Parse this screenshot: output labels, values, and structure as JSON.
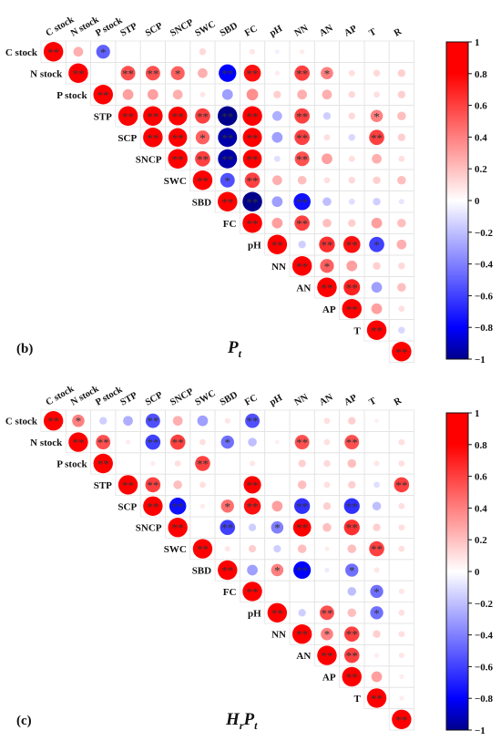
{
  "chart_data": [
    {
      "type": "heatmap",
      "panel_label": "(b)",
      "panel_title": "P",
      "panel_title_sub": "t",
      "variables": [
        "C stock",
        "N stock",
        "P stock",
        "STP",
        "SCP",
        "SNCP",
        "SWC",
        "SBD",
        "FC",
        "pH",
        "NN",
        "AN",
        "AP",
        "T",
        "R"
      ],
      "colorbar_ticks": [
        "1",
        "0.8",
        "0.6",
        "0.4",
        "0.2",
        "0",
        "−0.2",
        "−0.4",
        "−0.6",
        "−0.8",
        "−1"
      ],
      "colorbar_range": [
        -1,
        1
      ],
      "cells": [
        [
          0,
          0,
          1,
          "**"
        ],
        [
          0,
          1,
          0.25,
          ""
        ],
        [
          0,
          2,
          -0.5,
          "*"
        ],
        [
          0,
          6,
          0.12,
          ""
        ],
        [
          0,
          8,
          0.08,
          ""
        ],
        [
          0,
          9,
          -0.05,
          ""
        ],
        [
          0,
          10,
          0.06,
          ""
        ],
        [
          1,
          1,
          1,
          "**"
        ],
        [
          1,
          3,
          0.55,
          "**"
        ],
        [
          1,
          4,
          0.55,
          "**"
        ],
        [
          1,
          5,
          0.5,
          "*"
        ],
        [
          1,
          6,
          0.25,
          ""
        ],
        [
          1,
          7,
          -0.8,
          "**"
        ],
        [
          1,
          8,
          0.75,
          "**"
        ],
        [
          1,
          9,
          0.06,
          ""
        ],
        [
          1,
          10,
          0.6,
          "**"
        ],
        [
          1,
          11,
          0.4,
          "*"
        ],
        [
          1,
          12,
          0.1,
          ""
        ],
        [
          1,
          13,
          0.12,
          ""
        ],
        [
          1,
          14,
          0.15,
          ""
        ],
        [
          2,
          2,
          1,
          "**"
        ],
        [
          2,
          3,
          0.3,
          ""
        ],
        [
          2,
          4,
          0.3,
          ""
        ],
        [
          2,
          5,
          0.25,
          ""
        ],
        [
          2,
          6,
          0.08,
          ""
        ],
        [
          2,
          7,
          -0.3,
          ""
        ],
        [
          2,
          8,
          0.35,
          ""
        ],
        [
          2,
          9,
          0.15,
          ""
        ],
        [
          2,
          10,
          0.25,
          ""
        ],
        [
          2,
          11,
          0.25,
          ""
        ],
        [
          2,
          12,
          0.12,
          ""
        ],
        [
          2,
          13,
          0.1,
          ""
        ],
        [
          2,
          14,
          0.15,
          ""
        ],
        [
          3,
          3,
          1,
          "**"
        ],
        [
          3,
          4,
          1,
          "**"
        ],
        [
          3,
          5,
          0.92,
          "**"
        ],
        [
          3,
          6,
          0.6,
          "**"
        ],
        [
          3,
          7,
          -1,
          "**"
        ],
        [
          3,
          8,
          1,
          "**"
        ],
        [
          3,
          9,
          -0.25,
          ""
        ],
        [
          3,
          10,
          0.6,
          "**"
        ],
        [
          3,
          11,
          -0.15,
          ""
        ],
        [
          3,
          12,
          0.12,
          ""
        ],
        [
          3,
          13,
          0.4,
          "*"
        ],
        [
          3,
          14,
          0.2,
          ""
        ],
        [
          4,
          4,
          1,
          "**"
        ],
        [
          4,
          5,
          0.9,
          "**"
        ],
        [
          4,
          6,
          0.5,
          "*"
        ],
        [
          4,
          7,
          -0.95,
          "**"
        ],
        [
          4,
          8,
          0.95,
          "**"
        ],
        [
          4,
          9,
          -0.3,
          ""
        ],
        [
          4,
          10,
          0.6,
          "**"
        ],
        [
          4,
          11,
          0.1,
          ""
        ],
        [
          4,
          12,
          -0.12,
          ""
        ],
        [
          4,
          13,
          0.6,
          "**"
        ],
        [
          4,
          14,
          0.15,
          ""
        ],
        [
          5,
          5,
          1,
          "**"
        ],
        [
          5,
          6,
          0.6,
          "**"
        ],
        [
          5,
          7,
          -0.95,
          "**"
        ],
        [
          5,
          8,
          0.92,
          "**"
        ],
        [
          5,
          9,
          -0.1,
          ""
        ],
        [
          5,
          10,
          0.55,
          "**"
        ],
        [
          5,
          11,
          0.3,
          ""
        ],
        [
          5,
          12,
          0.1,
          ""
        ],
        [
          5,
          13,
          0.25,
          ""
        ],
        [
          5,
          14,
          0.1,
          ""
        ],
        [
          6,
          6,
          1,
          "**"
        ],
        [
          6,
          7,
          -0.55,
          "*"
        ],
        [
          6,
          8,
          0.6,
          "**"
        ],
        [
          6,
          9,
          0.25,
          ""
        ],
        [
          6,
          10,
          0.2,
          ""
        ],
        [
          6,
          11,
          0.1,
          ""
        ],
        [
          6,
          12,
          0.12,
          ""
        ],
        [
          6,
          13,
          0.15,
          ""
        ],
        [
          6,
          14,
          0.2,
          ""
        ],
        [
          7,
          7,
          1,
          "**"
        ],
        [
          7,
          8,
          -1,
          "**"
        ],
        [
          7,
          9,
          -0.3,
          ""
        ],
        [
          7,
          10,
          -0.75,
          "**"
        ],
        [
          7,
          11,
          -0.2,
          ""
        ],
        [
          7,
          12,
          -0.1,
          ""
        ],
        [
          7,
          13,
          -0.15,
          ""
        ],
        [
          7,
          14,
          -0.08,
          ""
        ],
        [
          8,
          8,
          1,
          "**"
        ],
        [
          8,
          9,
          0.3,
          ""
        ],
        [
          8,
          10,
          0.6,
          "**"
        ],
        [
          8,
          11,
          0.2,
          ""
        ],
        [
          8,
          12,
          0.15,
          ""
        ],
        [
          8,
          13,
          0.3,
          ""
        ],
        [
          8,
          14,
          0.2,
          ""
        ],
        [
          9,
          9,
          1,
          "**"
        ],
        [
          9,
          10,
          -0.15,
          ""
        ],
        [
          9,
          11,
          0.65,
          "**"
        ],
        [
          9,
          12,
          0.75,
          "**"
        ],
        [
          9,
          13,
          -0.6,
          "*"
        ],
        [
          9,
          14,
          0.25,
          ""
        ],
        [
          10,
          10,
          1,
          "**"
        ],
        [
          10,
          11,
          0.5,
          "*"
        ],
        [
          10,
          12,
          0.3,
          ""
        ],
        [
          10,
          13,
          0.15,
          ""
        ],
        [
          10,
          14,
          0.12,
          ""
        ],
        [
          11,
          11,
          1,
          "**"
        ],
        [
          11,
          12,
          0.7,
          "**"
        ],
        [
          11,
          13,
          -0.3,
          ""
        ],
        [
          11,
          14,
          0.2,
          ""
        ],
        [
          12,
          12,
          1,
          "**"
        ],
        [
          12,
          13,
          0.3,
          ""
        ],
        [
          12,
          14,
          0.1,
          ""
        ],
        [
          13,
          13,
          1,
          "**"
        ],
        [
          13,
          14,
          -0.12,
          ""
        ],
        [
          14,
          14,
          1,
          "**"
        ]
      ]
    },
    {
      "type": "heatmap",
      "panel_label": "(c)",
      "panel_title": "H",
      "panel_title_sub1": "r",
      "panel_title_mid": "P",
      "panel_title_sub2": "t",
      "variables": [
        "C stock",
        "N stock",
        "P stock",
        "STP",
        "SCP",
        "SNCP",
        "SWC",
        "SBD",
        "FC",
        "pH",
        "NN",
        "AN",
        "AP",
        "T",
        "R"
      ],
      "colorbar_ticks": [
        "1",
        "0.8",
        "0.6",
        "0.4",
        "0.2",
        "0",
        "−0.2",
        "−0.4",
        "−0.6",
        "−0.8",
        "−1"
      ],
      "colorbar_range": [
        -1,
        1
      ],
      "cells": [
        [
          0,
          0,
          1,
          "**"
        ],
        [
          0,
          1,
          0.4,
          "*"
        ],
        [
          0,
          2,
          -0.15,
          ""
        ],
        [
          0,
          3,
          -0.25,
          ""
        ],
        [
          0,
          4,
          -0.55,
          "**"
        ],
        [
          0,
          5,
          0.25,
          ""
        ],
        [
          0,
          6,
          -0.3,
          ""
        ],
        [
          0,
          7,
          0.08,
          ""
        ],
        [
          0,
          8,
          -0.55,
          "**"
        ],
        [
          0,
          11,
          0.1,
          ""
        ],
        [
          0,
          12,
          0.15,
          ""
        ],
        [
          0,
          13,
          0.05,
          ""
        ],
        [
          1,
          1,
          1,
          "**"
        ],
        [
          1,
          2,
          0.55,
          "**"
        ],
        [
          1,
          3,
          0.06,
          ""
        ],
        [
          1,
          4,
          -0.6,
          "**"
        ],
        [
          1,
          5,
          0.6,
          "**"
        ],
        [
          1,
          6,
          0.1,
          ""
        ],
        [
          1,
          7,
          -0.45,
          "*"
        ],
        [
          1,
          8,
          -0.2,
          ""
        ],
        [
          1,
          9,
          0.05,
          ""
        ],
        [
          1,
          10,
          0.55,
          "**"
        ],
        [
          1,
          11,
          0.1,
          ""
        ],
        [
          1,
          12,
          0.55,
          "**"
        ],
        [
          1,
          14,
          0.1,
          ""
        ],
        [
          2,
          2,
          1,
          "**"
        ],
        [
          2,
          4,
          0.06,
          ""
        ],
        [
          2,
          5,
          0.1,
          ""
        ],
        [
          2,
          6,
          0.6,
          "**"
        ],
        [
          2,
          8,
          0.08,
          ""
        ],
        [
          2,
          10,
          0.15,
          ""
        ],
        [
          2,
          11,
          0.12,
          ""
        ],
        [
          2,
          12,
          0.2,
          ""
        ],
        [
          2,
          13,
          0.08,
          ""
        ],
        [
          2,
          14,
          0.1,
          ""
        ],
        [
          3,
          3,
          1,
          "**"
        ],
        [
          3,
          4,
          0.6,
          "**"
        ],
        [
          3,
          5,
          0.2,
          ""
        ],
        [
          3,
          6,
          0.1,
          ""
        ],
        [
          3,
          8,
          0.8,
          "**"
        ],
        [
          3,
          10,
          0.2,
          ""
        ],
        [
          3,
          11,
          0.1,
          ""
        ],
        [
          3,
          12,
          0.15,
          ""
        ],
        [
          3,
          13,
          -0.1,
          ""
        ],
        [
          3,
          14,
          0.6,
          "**"
        ],
        [
          4,
          4,
          1,
          "**"
        ],
        [
          4,
          5,
          -0.75,
          "**"
        ],
        [
          4,
          6,
          0.06,
          ""
        ],
        [
          4,
          7,
          0.45,
          "*"
        ],
        [
          4,
          8,
          0.75,
          "**"
        ],
        [
          4,
          9,
          0.3,
          ""
        ],
        [
          4,
          10,
          -0.65,
          "**"
        ],
        [
          4,
          11,
          0.15,
          ""
        ],
        [
          4,
          12,
          -0.65,
          "**"
        ],
        [
          4,
          13,
          -0.2,
          ""
        ],
        [
          4,
          14,
          0.1,
          ""
        ],
        [
          5,
          5,
          1,
          "**"
        ],
        [
          5,
          7,
          -0.6,
          "**"
        ],
        [
          5,
          8,
          -0.15,
          ""
        ],
        [
          5,
          9,
          -0.4,
          "*"
        ],
        [
          5,
          10,
          0.85,
          "**"
        ],
        [
          5,
          11,
          0.2,
          ""
        ],
        [
          5,
          12,
          0.65,
          "**"
        ],
        [
          5,
          13,
          0.15,
          ""
        ],
        [
          5,
          14,
          0.1,
          ""
        ],
        [
          6,
          6,
          1,
          "**"
        ],
        [
          6,
          7,
          0.08,
          ""
        ],
        [
          6,
          8,
          0.15,
          ""
        ],
        [
          6,
          9,
          -0.15,
          ""
        ],
        [
          6,
          10,
          0.2,
          ""
        ],
        [
          6,
          11,
          0.06,
          ""
        ],
        [
          6,
          12,
          0.2,
          ""
        ],
        [
          6,
          13,
          0.6,
          "**"
        ],
        [
          6,
          14,
          0.1,
          ""
        ],
        [
          7,
          7,
          1,
          "**"
        ],
        [
          7,
          8,
          -0.3,
          ""
        ],
        [
          7,
          9,
          0.4,
          "*"
        ],
        [
          7,
          10,
          -0.8,
          "**"
        ],
        [
          7,
          11,
          -0.06,
          ""
        ],
        [
          7,
          12,
          -0.45,
          "*"
        ],
        [
          7,
          13,
          0.08,
          ""
        ],
        [
          8,
          8,
          1,
          "**"
        ],
        [
          8,
          12,
          -0.2,
          ""
        ],
        [
          8,
          13,
          -0.45,
          "*"
        ],
        [
          8,
          14,
          0.08,
          ""
        ],
        [
          9,
          9,
          1,
          "**"
        ],
        [
          9,
          10,
          -0.15,
          ""
        ],
        [
          9,
          11,
          0.55,
          "**"
        ],
        [
          9,
          12,
          0.2,
          ""
        ],
        [
          9,
          13,
          -0.45,
          "*"
        ],
        [
          9,
          14,
          0.1,
          ""
        ],
        [
          10,
          10,
          1,
          "**"
        ],
        [
          10,
          11,
          0.4,
          "*"
        ],
        [
          10,
          12,
          0.6,
          "**"
        ],
        [
          10,
          13,
          0.15,
          ""
        ],
        [
          10,
          14,
          0.1,
          ""
        ],
        [
          11,
          11,
          1,
          "**"
        ],
        [
          11,
          12,
          0.6,
          "**"
        ],
        [
          11,
          13,
          0.06,
          ""
        ],
        [
          11,
          14,
          0.08,
          ""
        ],
        [
          12,
          12,
          1,
          "**"
        ],
        [
          12,
          13,
          0.3,
          ""
        ],
        [
          12,
          14,
          0.06,
          ""
        ],
        [
          13,
          13,
          1,
          "**"
        ],
        [
          13,
          14,
          0.06,
          ""
        ],
        [
          14,
          14,
          1,
          "**"
        ]
      ]
    }
  ]
}
